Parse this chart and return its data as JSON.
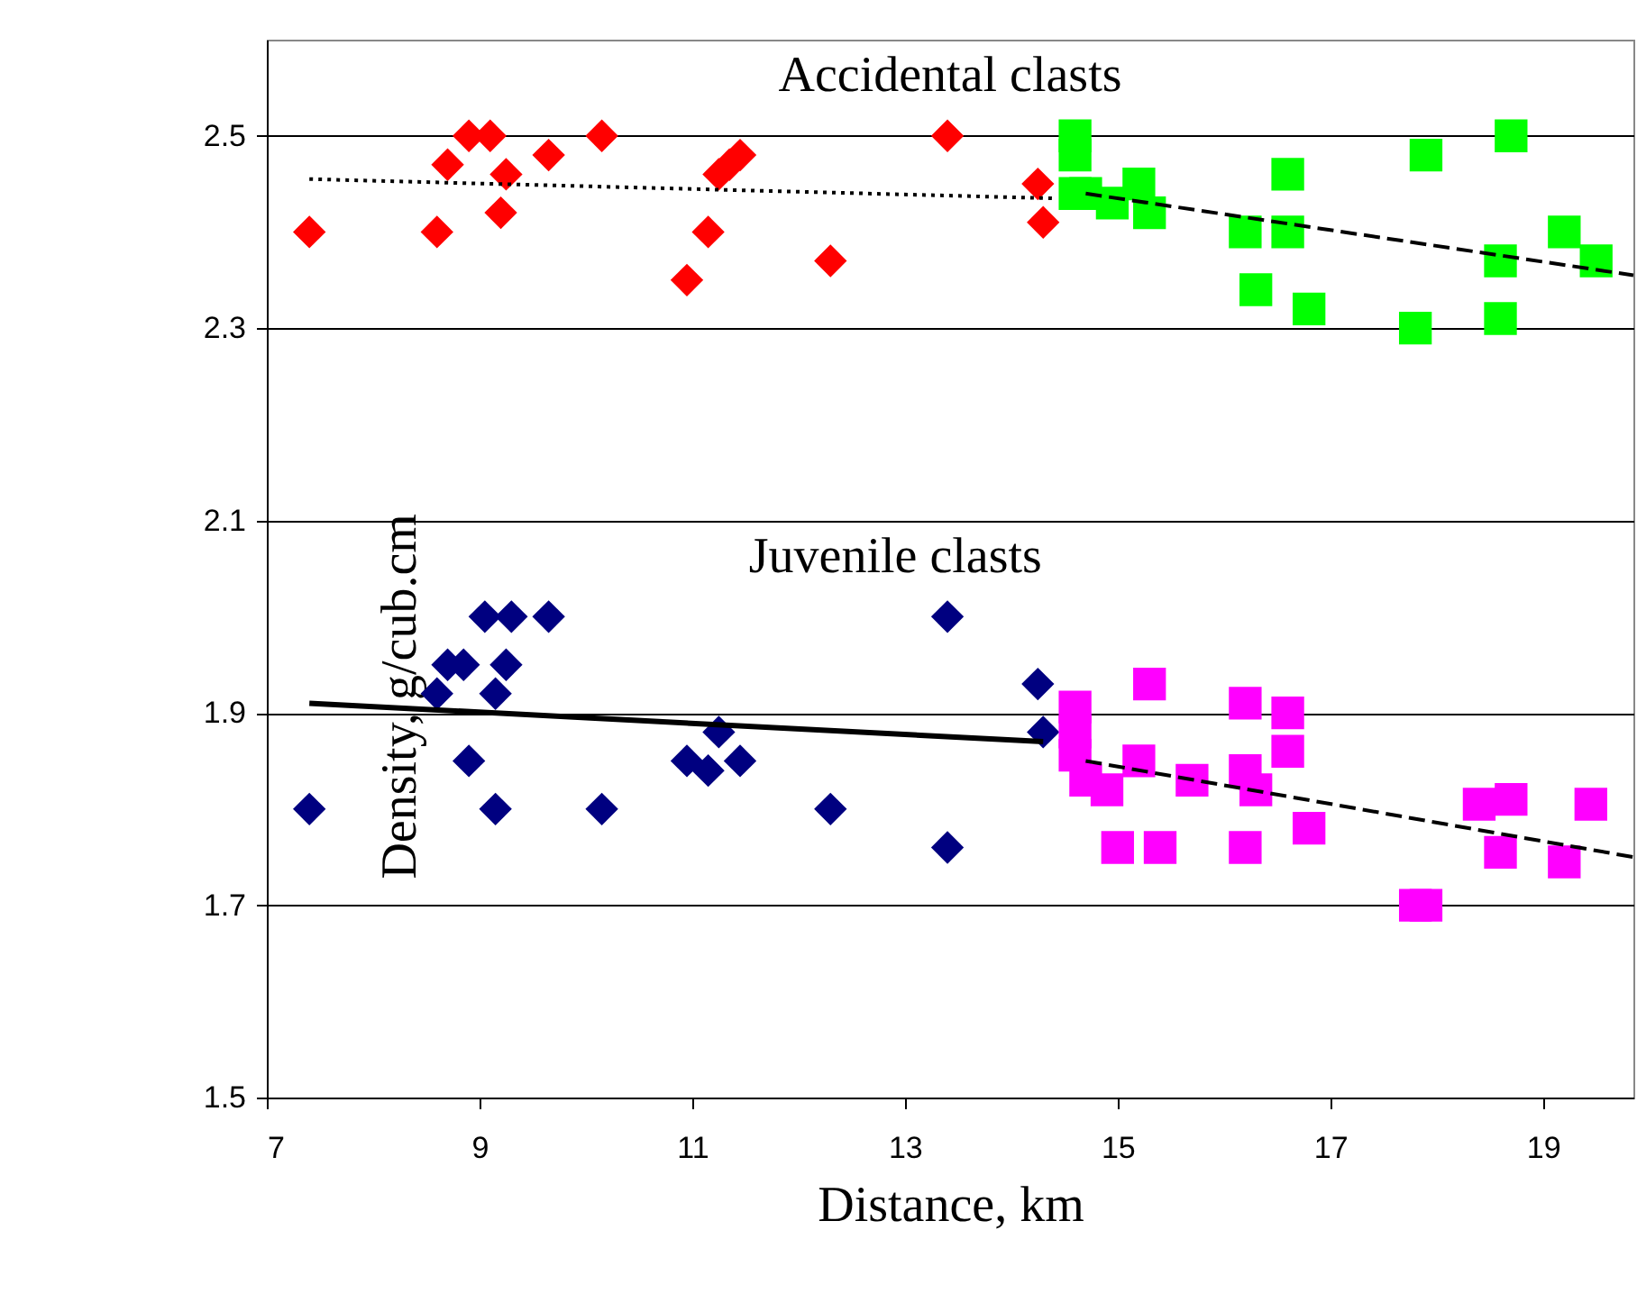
{
  "chart_data": {
    "type": "scatter",
    "xlabel": "Distance, km",
    "ylabel": "Density, g/cub.cm",
    "xlim": [
      7,
      19.85
    ],
    "xticks": [
      7,
      9,
      11,
      13,
      15,
      17,
      19
    ],
    "ylim": [
      1.5,
      2.6
    ],
    "yticks": [
      1.5,
      1.7,
      1.9,
      2.1,
      2.3,
      2.5
    ],
    "grid": "y",
    "annotations": [
      "Accidental clasts",
      "Juvenile clasts"
    ],
    "series": [
      {
        "marker": "diamond",
        "color": "#ff0000",
        "x": [
          7.4,
          8.6,
          8.7,
          8.9,
          9.1,
          9.25,
          9.2,
          9.65,
          10.15,
          10.95,
          11.15,
          11.25,
          11.35,
          11.45,
          12.3,
          13.4,
          14.25,
          14.3
        ],
        "values": [
          2.4,
          2.4,
          2.47,
          2.5,
          2.5,
          2.46,
          2.42,
          2.48,
          2.5,
          2.35,
          2.4,
          2.46,
          2.47,
          2.48,
          2.37,
          2.5,
          2.45,
          2.41
        ]
      },
      {
        "marker": "square",
        "color": "#00ff00",
        "x": [
          14.6,
          14.6,
          14.6,
          14.7,
          14.95,
          15.2,
          15.3,
          16.2,
          16.3,
          16.6,
          16.6,
          16.8,
          17.8,
          17.9,
          18.6,
          18.7,
          18.6,
          19.2,
          19.5
        ],
        "values": [
          2.5,
          2.48,
          2.44,
          2.44,
          2.43,
          2.45,
          2.42,
          2.4,
          2.34,
          2.46,
          2.4,
          2.32,
          2.3,
          2.48,
          2.31,
          2.5,
          2.37,
          2.4,
          2.37
        ]
      },
      {
        "marker": "diamond",
        "color": "#000080",
        "x": [
          7.4,
          8.6,
          8.7,
          8.85,
          8.9,
          9.05,
          9.3,
          9.15,
          9.25,
          9.15,
          9.65,
          10.15,
          10.95,
          11.15,
          11.25,
          11.45,
          12.3,
          13.4,
          13.4,
          14.25,
          14.3
        ],
        "values": [
          1.8,
          1.92,
          1.95,
          1.95,
          1.85,
          2.0,
          2.0,
          1.92,
          1.95,
          1.8,
          2.0,
          1.8,
          1.85,
          1.84,
          1.88,
          1.85,
          1.8,
          2.0,
          1.76,
          1.93,
          1.88
        ]
      },
      {
        "marker": "square",
        "color": "#ff00ff",
        "x": [
          14.6,
          14.6,
          14.6,
          14.7,
          14.9,
          15.0,
          15.3,
          15.2,
          15.4,
          15.7,
          16.2,
          16.2,
          16.3,
          16.2,
          16.6,
          16.6,
          16.8,
          17.8,
          17.9,
          18.4,
          18.7,
          18.6,
          19.2,
          19.45
        ],
        "values": [
          1.906,
          1.88,
          1.856,
          1.83,
          1.82,
          1.76,
          1.93,
          1.85,
          1.76,
          1.83,
          1.91,
          1.84,
          1.82,
          1.76,
          1.9,
          1.86,
          1.78,
          1.7,
          1.7,
          1.805,
          1.81,
          1.755,
          1.745,
          1.805
        ]
      },
      {
        "type": "line",
        "marker": "none",
        "line_style": "dotted",
        "color": "#000000",
        "x": [
          7.4,
          14.4
        ],
        "values": [
          2.455,
          2.435
        ]
      },
      {
        "type": "line",
        "marker": "none",
        "line_style": "dashed",
        "color": "#000000",
        "x": [
          14.7,
          19.85
        ],
        "values": [
          2.44,
          2.355
        ]
      },
      {
        "type": "line",
        "marker": "none",
        "line_style": "solid",
        "color": "#000000",
        "x": [
          7.4,
          14.3
        ],
        "values": [
          1.91,
          1.87
        ]
      },
      {
        "type": "line",
        "marker": "none",
        "line_style": "dashed",
        "color": "#000000",
        "x": [
          14.7,
          19.85
        ],
        "values": [
          1.85,
          1.75
        ]
      }
    ]
  }
}
